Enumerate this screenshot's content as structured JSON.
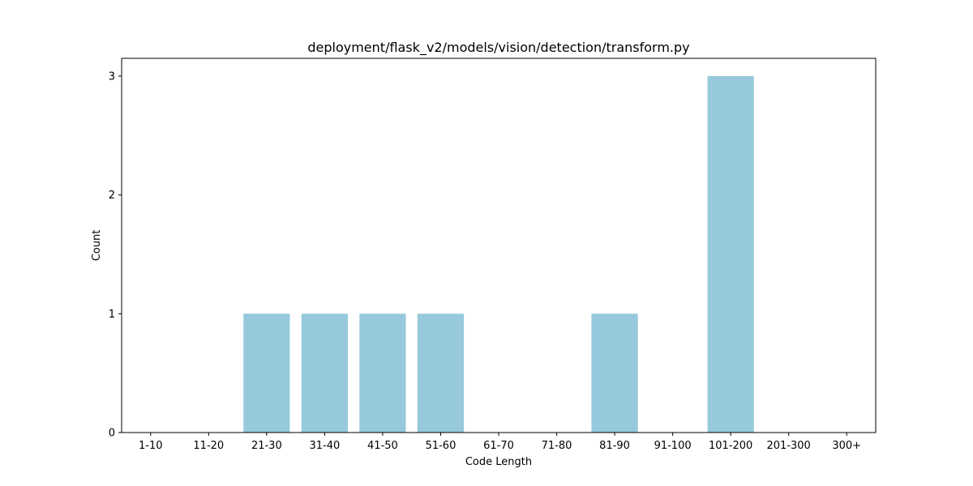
{
  "chart_data": {
    "type": "bar",
    "title": "deployment/flask_v2/models/vision/detection/transform.py",
    "xlabel": "Code Length",
    "ylabel": "Count",
    "categories": [
      "1-10",
      "11-20",
      "21-30",
      "31-40",
      "41-50",
      "51-60",
      "61-70",
      "71-80",
      "81-90",
      "91-100",
      "101-200",
      "201-300",
      "300+"
    ],
    "values": [
      0,
      0,
      1,
      1,
      1,
      1,
      0,
      0,
      1,
      0,
      3,
      0,
      0
    ],
    "yticks": [
      "0",
      "1",
      "2",
      "3"
    ],
    "ylim": [
      0,
      3.15
    ],
    "bar_color": "#96c9dc",
    "grid": false,
    "legend": "none"
  }
}
